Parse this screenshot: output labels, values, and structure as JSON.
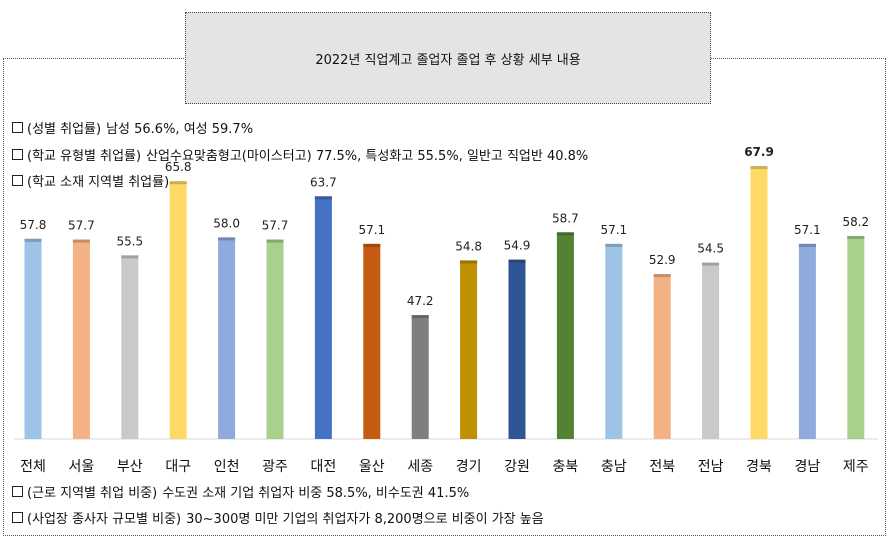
{
  "title": "2022년 직업계고 졸업자 졸업 후 상황 세부 내용",
  "bullets_top": [
    {
      "head": "(성별 취업률)",
      "text": "남성 56.6%, 여성 59.7%"
    },
    {
      "head": "(학교 유형별 취업률)",
      "text": "산업수요맞춤형고(마이스터고) 77.5%, 특성화고 55.5%, 일반고 직업반 40.8%"
    },
    {
      "head": "(학교 소재 지역별 취업률)",
      "text": ""
    }
  ],
  "bullets_bottom": [
    {
      "head": "(근로 지역별 취업 비중)",
      "text": "수도권 소재 기업 취업자 비중 58.5%, 비수도권 41.5%"
    },
    {
      "head": "(사업장 종사자 규모별 비중)",
      "text": "30~300명 미만 기업의 취업자가 8,200명으로 비중이 가장 높음"
    }
  ],
  "chart_data": {
    "type": "bar",
    "categories": [
      "전체",
      "서울",
      "부산",
      "대구",
      "인천",
      "광주",
      "대전",
      "울산",
      "세종",
      "경기",
      "강원",
      "충북",
      "충남",
      "전북",
      "전남",
      "경북",
      "경남",
      "제주"
    ],
    "values": [
      57.8,
      57.7,
      55.5,
      65.8,
      58.0,
      57.7,
      63.7,
      57.1,
      47.2,
      54.8,
      54.9,
      58.7,
      57.1,
      52.9,
      54.5,
      67.9,
      57.1,
      58.2
    ],
    "value_labels": [
      "57.8",
      "57.7",
      "55.5",
      "65.8",
      "58.0",
      "57.7",
      "63.7",
      "57.1",
      "47.2",
      "54.8",
      "54.9",
      "58.7",
      "57.1",
      "52.9",
      "54.5",
      "67.9",
      "57.1",
      "58.2"
    ],
    "colors": [
      "#9dc3e6",
      "#f4b183",
      "#c9c9c9",
      "#ffd966",
      "#8faadc",
      "#a9d18e",
      "#4472c4",
      "#c55a11",
      "#7f7f7f",
      "#bf9000",
      "#2f5597",
      "#548235",
      "#9dc3e6",
      "#f4b183",
      "#c9c9c9",
      "#ffd966",
      "#8faadc",
      "#a9d18e"
    ],
    "highlight_index": 15,
    "ylim": [
      30,
      70
    ],
    "grid": false,
    "legend": "none"
  }
}
